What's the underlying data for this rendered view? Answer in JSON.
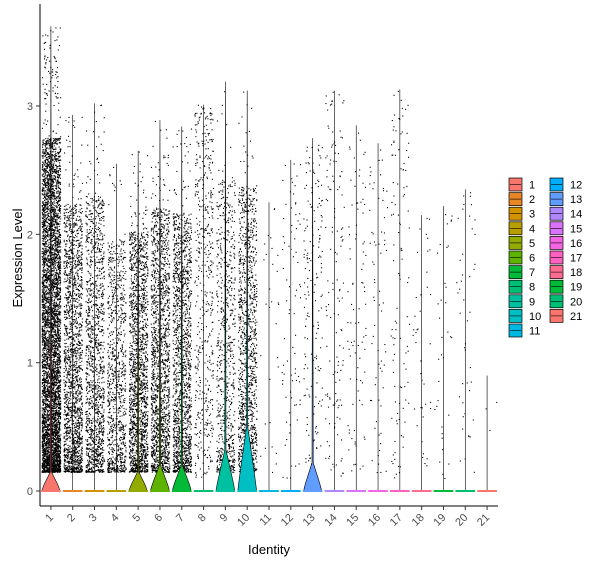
{
  "chart_data": {
    "type": "violin",
    "xlabel": "Identity",
    "ylabel": "Expression Level",
    "ylim": [
      -0.15,
      3.75
    ],
    "yticks": [
      0,
      1,
      2,
      3
    ],
    "categories": [
      "1",
      "2",
      "3",
      "4",
      "5",
      "6",
      "7",
      "8",
      "9",
      "10",
      "11",
      "12",
      "13",
      "14",
      "15",
      "16",
      "17",
      "18",
      "19",
      "20",
      "21"
    ],
    "colors": [
      "#F8766D",
      "#E88526",
      "#D39200",
      "#B79F00",
      "#93AA00",
      "#5EB300",
      "#00BA38",
      "#00BF74",
      "#00C19F",
      "#00BFC4",
      "#00B9E3",
      "#00ADFA",
      "#619CFF",
      "#AE87FF",
      "#DB72FB",
      "#F564E3",
      "#FF61C3",
      "#FF6C91",
      "#00BA38",
      "#00BF74",
      "#F8766D"
    ],
    "legend": {
      "placement": "right",
      "columns": [
        [
          "1",
          "2",
          "3",
          "4",
          "5",
          "6",
          "7",
          "8",
          "9",
          "10",
          "11"
        ],
        [
          "12",
          "13",
          "14",
          "15",
          "16",
          "17",
          "18",
          "19",
          "20",
          "21"
        ]
      ]
    },
    "series": [
      {
        "category": "1",
        "max": 3.62,
        "violin_height": 0.15,
        "violin_width": 0.9,
        "points": 5200
      },
      {
        "category": "2",
        "max": 2.93,
        "violin_height": 0.0,
        "violin_width": 0.0,
        "points": 1800
      },
      {
        "category": "3",
        "max": 3.02,
        "violin_height": 0.0,
        "violin_width": 0.0,
        "points": 1300
      },
      {
        "category": "4",
        "max": 2.55,
        "violin_height": 0.0,
        "violin_width": 0.0,
        "points": 900
      },
      {
        "category": "5",
        "max": 2.65,
        "violin_height": 0.15,
        "violin_width": 0.9,
        "points": 1700
      },
      {
        "category": "6",
        "max": 2.89,
        "violin_height": 0.2,
        "violin_width": 0.95,
        "points": 1600
      },
      {
        "category": "7",
        "max": 2.84,
        "violin_height": 0.2,
        "violin_width": 0.95,
        "points": 1500
      },
      {
        "category": "8",
        "max": 3.01,
        "violin_height": 0.0,
        "violin_width": 0.0,
        "points": 500
      },
      {
        "category": "9",
        "max": 3.19,
        "violin_height": 0.32,
        "violin_width": 0.95,
        "points": 700
      },
      {
        "category": "10",
        "max": 3.12,
        "violin_height": 0.5,
        "violin_width": 0.95,
        "points": 1200
      },
      {
        "category": "11",
        "max": 2.25,
        "violin_height": 0.0,
        "violin_width": 0.0,
        "points": 30
      },
      {
        "category": "12",
        "max": 2.58,
        "violin_height": 0.0,
        "violin_width": 0.0,
        "points": 80
      },
      {
        "category": "13",
        "max": 2.75,
        "violin_height": 0.22,
        "violin_width": 0.9,
        "points": 180
      },
      {
        "category": "14",
        "max": 3.12,
        "violin_height": 0.0,
        "violin_width": 0.0,
        "points": 140
      },
      {
        "category": "15",
        "max": 2.85,
        "violin_height": 0.0,
        "violin_width": 0.0,
        "points": 90
      },
      {
        "category": "16",
        "max": 2.71,
        "violin_height": 0.0,
        "violin_width": 0.0,
        "points": 70
      },
      {
        "category": "17",
        "max": 3.13,
        "violin_height": 0.0,
        "violin_width": 0.0,
        "points": 110
      },
      {
        "category": "18",
        "max": 2.15,
        "violin_height": 0.0,
        "violin_width": 0.0,
        "points": 40
      },
      {
        "category": "19",
        "max": 2.22,
        "violin_height": 0.0,
        "violin_width": 0.0,
        "points": 35
      },
      {
        "category": "20",
        "max": 2.35,
        "violin_height": 0.0,
        "violin_width": 0.0,
        "points": 45
      },
      {
        "category": "21",
        "max": 0.9,
        "violin_height": 0.0,
        "violin_width": 0.0,
        "points": 3
      }
    ]
  }
}
